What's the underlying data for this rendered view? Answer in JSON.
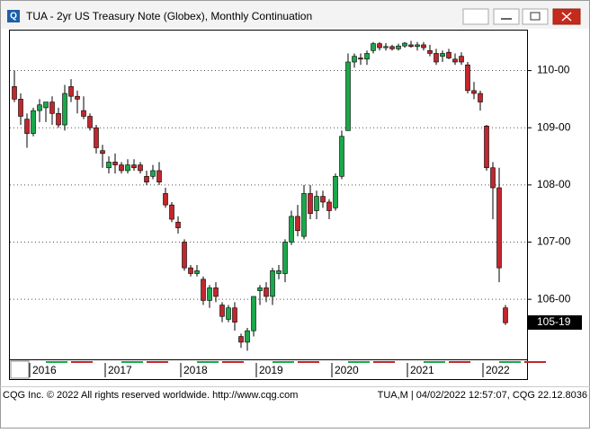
{
  "window": {
    "title": "TUA - 2yr US Treasury Note (Globex), Monthly Continuation"
  },
  "footer": {
    "left": "CQG Inc. © 2022 All rights reserved worldwide. http://www.cqg.com",
    "right": "TUA,M | 04/02/2022 12:57:07, CQG 22.12.8036"
  },
  "chart_data": {
    "type": "candlestick",
    "categories": [
      null,
      null,
      null,
      "2016",
      null,
      null,
      null,
      null,
      null,
      null,
      null,
      null,
      null,
      null,
      null,
      "2017",
      null,
      null,
      null,
      null,
      null,
      null,
      null,
      null,
      null,
      null,
      null,
      "2018",
      null,
      null,
      null,
      null,
      null,
      null,
      null,
      null,
      null,
      null,
      null,
      "2019",
      null,
      null,
      null,
      null,
      null,
      null,
      null,
      null,
      null,
      null,
      null,
      "2020",
      null,
      null,
      null,
      null,
      null,
      null,
      null,
      null,
      null,
      null,
      null,
      "2021",
      null,
      null,
      null,
      null,
      null,
      null,
      null,
      null,
      null,
      null,
      null,
      "2022",
      null,
      null,
      null
    ],
    "open": [
      109.72,
      109.5,
      109.15,
      108.9,
      109.3,
      109.35,
      109.45,
      109.25,
      109.05,
      109.72,
      109.55,
      109.3,
      109.2,
      109.0,
      108.6,
      108.3,
      108.4,
      108.35,
      108.25,
      108.35,
      108.35,
      108.15,
      108.15,
      108.25,
      107.85,
      107.65,
      107.35,
      107.0,
      106.55,
      106.45,
      106.35,
      105.98,
      106.2,
      105.9,
      105.65,
      105.85,
      105.35,
      105.25,
      105.45,
      106.15,
      106.2,
      106.05,
      106.45,
      106.45,
      107.0,
      107.45,
      107.1,
      107.85,
      107.55,
      107.8,
      107.7,
      107.6,
      108.15,
      108.95,
      110.15,
      110.22,
      110.2,
      110.35,
      110.47,
      110.4,
      110.42,
      110.38,
      110.43,
      110.45,
      110.42,
      110.45,
      110.35,
      110.3,
      110.25,
      110.32,
      110.2,
      110.25,
      110.1,
      109.65,
      109.6,
      109.03,
      108.3,
      107.95,
      105.85
    ],
    "high": [
      110.0,
      109.6,
      109.25,
      109.35,
      109.5,
      109.45,
      109.55,
      109.35,
      109.75,
      109.85,
      109.65,
      109.55,
      109.25,
      109.05,
      108.7,
      108.5,
      108.55,
      108.4,
      108.45,
      108.45,
      108.4,
      108.25,
      108.35,
      108.4,
      107.95,
      107.7,
      107.45,
      107.05,
      106.6,
      106.6,
      106.4,
      106.25,
      106.3,
      105.95,
      105.9,
      105.95,
      105.4,
      105.5,
      106.05,
      106.25,
      106.3,
      106.55,
      106.6,
      107.05,
      107.55,
      107.65,
      108.0,
      108.0,
      107.9,
      107.9,
      107.75,
      108.2,
      108.95,
      110.3,
      110.3,
      110.3,
      110.35,
      110.5,
      110.5,
      110.48,
      110.45,
      110.47,
      110.5,
      110.52,
      110.5,
      110.5,
      110.45,
      110.38,
      110.35,
      110.38,
      110.3,
      110.32,
      110.15,
      109.8,
      109.65,
      109.05,
      108.4,
      108.3,
      105.9
    ],
    "low": [
      109.45,
      109.05,
      108.65,
      108.85,
      109.1,
      109.1,
      109.05,
      109.0,
      108.95,
      109.45,
      109.25,
      109.15,
      108.95,
      108.55,
      108.3,
      108.2,
      108.2,
      108.2,
      108.2,
      108.25,
      108.2,
      108.0,
      108.1,
      108.0,
      107.6,
      107.35,
      107.15,
      106.5,
      106.4,
      106.4,
      105.9,
      105.85,
      105.95,
      105.6,
      105.6,
      105.45,
      105.15,
      105.1,
      105.35,
      105.9,
      105.95,
      105.9,
      106.35,
      106.3,
      106.95,
      107.1,
      107.05,
      107.4,
      107.4,
      107.6,
      107.4,
      107.55,
      108.1,
      108.95,
      110.05,
      110.1,
      110.1,
      110.3,
      110.35,
      110.35,
      110.35,
      110.35,
      110.4,
      110.4,
      110.35,
      110.35,
      110.25,
      110.1,
      110.15,
      110.2,
      110.1,
      110.1,
      109.6,
      109.5,
      109.3,
      108.25,
      107.4,
      106.3,
      105.55
    ],
    "close": [
      109.5,
      109.2,
      108.9,
      109.3,
      109.4,
      109.45,
      109.25,
      109.05,
      109.6,
      109.55,
      109.5,
      109.2,
      109.0,
      108.65,
      108.55,
      108.4,
      108.35,
      108.25,
      108.35,
      108.3,
      108.25,
      108.05,
      108.25,
      108.05,
      107.65,
      107.4,
      107.25,
      106.55,
      106.45,
      106.5,
      105.98,
      106.2,
      106.05,
      105.7,
      105.85,
      105.6,
      105.25,
      105.45,
      106.05,
      106.2,
      106.05,
      106.5,
      106.5,
      107.0,
      107.45,
      107.2,
      107.85,
      107.5,
      107.8,
      107.7,
      107.55,
      108.15,
      108.85,
      110.15,
      110.25,
      110.2,
      110.3,
      110.47,
      110.4,
      110.42,
      110.38,
      110.43,
      110.48,
      110.42,
      110.45,
      110.4,
      110.3,
      110.15,
      110.3,
      110.22,
      110.15,
      110.15,
      109.65,
      109.6,
      109.45,
      108.3,
      107.95,
      106.55,
      105.59
    ],
    "up_color": "#1aa84a",
    "down_color": "#c1272d",
    "ylim": [
      104.95,
      110.7
    ],
    "yticks": [
      {
        "value": 106,
        "label": "106-00"
      },
      {
        "value": 107,
        "label": "107-00"
      },
      {
        "value": 108,
        "label": "108-00"
      },
      {
        "value": 109,
        "label": "109-00"
      },
      {
        "value": 110,
        "label": "110-00"
      }
    ],
    "last_price": {
      "value": 105.59375,
      "label": "105-19"
    },
    "grid": true
  }
}
